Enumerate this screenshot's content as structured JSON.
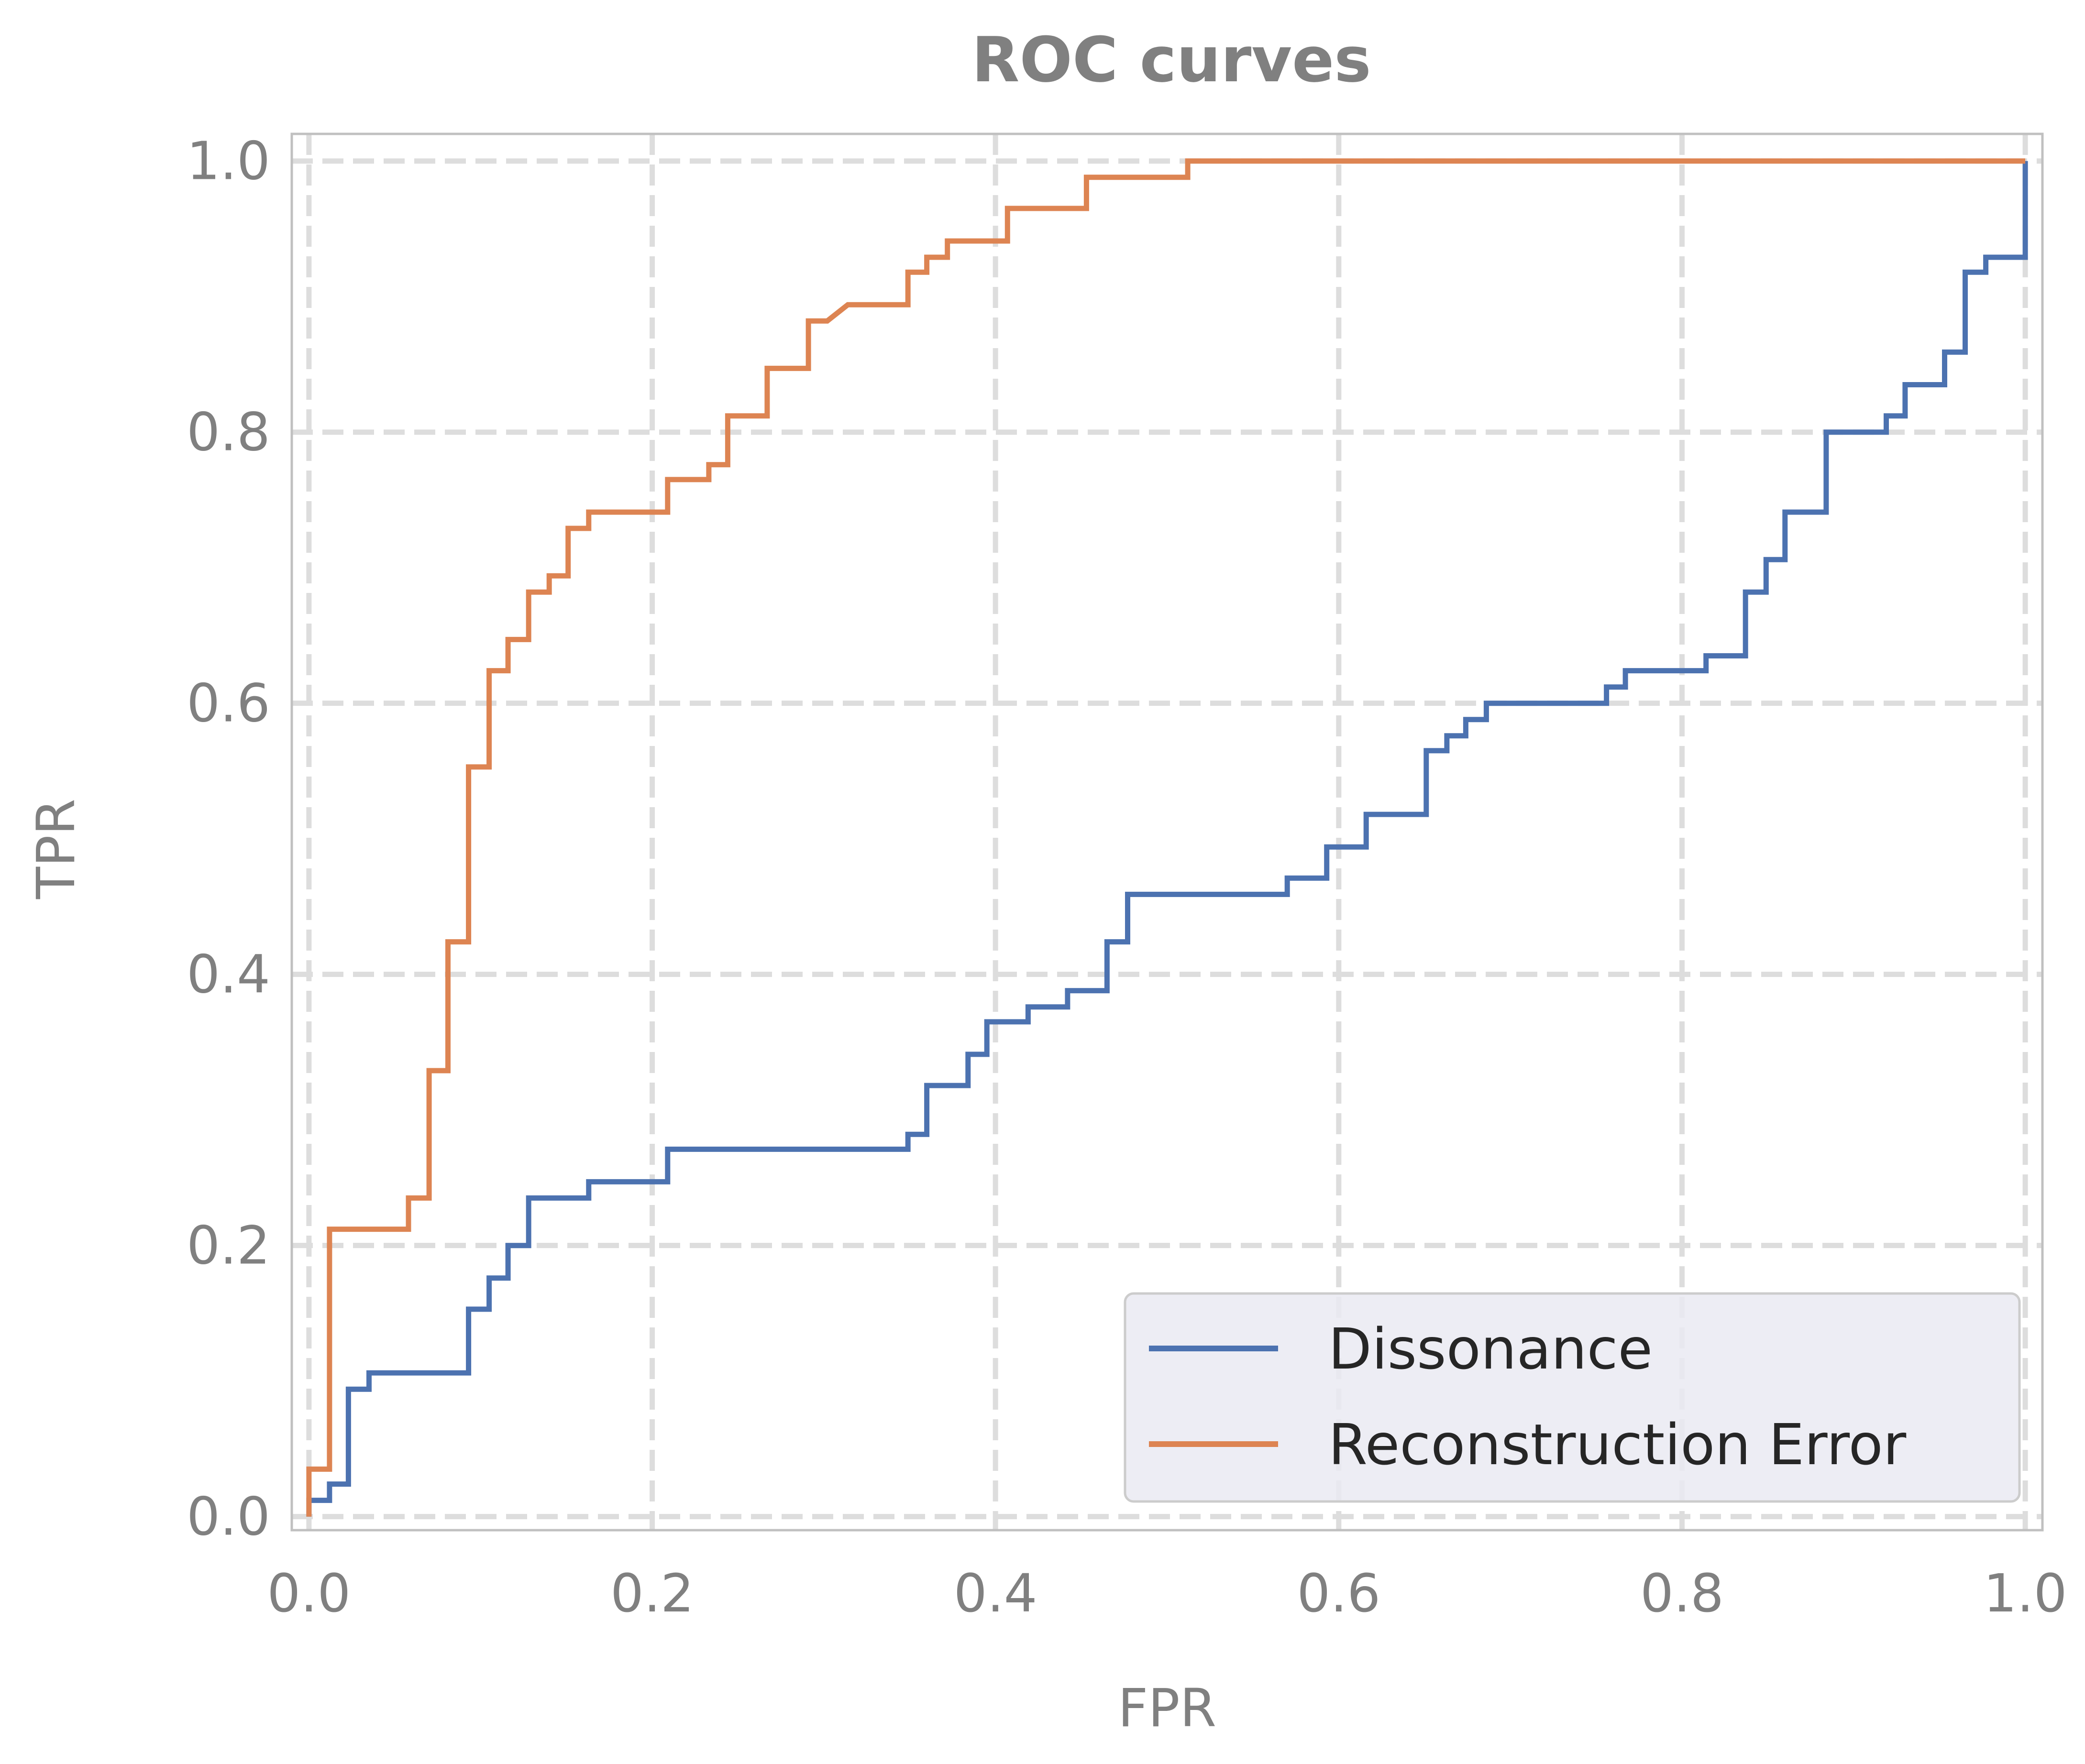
{
  "chart_data": {
    "type": "line",
    "title": "ROC curves",
    "xlabel": "FPR",
    "ylabel": "TPR",
    "xlim": [
      -0.01,
      1.01
    ],
    "ylim": [
      -0.01,
      1.02
    ],
    "xticks": [
      0.0,
      0.2,
      0.4,
      0.6,
      0.8,
      1.0
    ],
    "yticks": [
      0.0,
      0.2,
      0.4,
      0.6,
      0.8,
      1.0
    ],
    "xtick_labels": [
      "0.0",
      "0.2",
      "0.4",
      "0.6",
      "0.8",
      "1.0"
    ],
    "ytick_labels": [
      "0.0",
      "0.2",
      "0.4",
      "0.6",
      "0.8",
      "1.0"
    ],
    "grid": true,
    "grid_style": "dashed",
    "legend_position": "bottom-right",
    "series": [
      {
        "name": "Dissonance",
        "color": "#4c72b0",
        "step": true,
        "points": [
          [
            0.0,
            0.0
          ],
          [
            0.0,
            0.012
          ],
          [
            0.012,
            0.012
          ],
          [
            0.012,
            0.024
          ],
          [
            0.023,
            0.024
          ],
          [
            0.023,
            0.094
          ],
          [
            0.035,
            0.094
          ],
          [
            0.035,
            0.106
          ],
          [
            0.093,
            0.106
          ],
          [
            0.093,
            0.153
          ],
          [
            0.105,
            0.153
          ],
          [
            0.105,
            0.176
          ],
          [
            0.116,
            0.176
          ],
          [
            0.116,
            0.2
          ],
          [
            0.128,
            0.2
          ],
          [
            0.128,
            0.235
          ],
          [
            0.163,
            0.235
          ],
          [
            0.163,
            0.247
          ],
          [
            0.209,
            0.247
          ],
          [
            0.209,
            0.271
          ],
          [
            0.349,
            0.271
          ],
          [
            0.349,
            0.282
          ],
          [
            0.36,
            0.282
          ],
          [
            0.36,
            0.318
          ],
          [
            0.384,
            0.318
          ],
          [
            0.384,
            0.341
          ],
          [
            0.395,
            0.341
          ],
          [
            0.395,
            0.365
          ],
          [
            0.419,
            0.365
          ],
          [
            0.419,
            0.376
          ],
          [
            0.442,
            0.376
          ],
          [
            0.442,
            0.388
          ],
          [
            0.465,
            0.388
          ],
          [
            0.465,
            0.424
          ],
          [
            0.477,
            0.424
          ],
          [
            0.477,
            0.459
          ],
          [
            0.57,
            0.459
          ],
          [
            0.57,
            0.471
          ],
          [
            0.593,
            0.471
          ],
          [
            0.593,
            0.494
          ],
          [
            0.616,
            0.494
          ],
          [
            0.616,
            0.518
          ],
          [
            0.651,
            0.518
          ],
          [
            0.651,
            0.565
          ],
          [
            0.663,
            0.565
          ],
          [
            0.663,
            0.576
          ],
          [
            0.674,
            0.576
          ],
          [
            0.674,
            0.588
          ],
          [
            0.686,
            0.588
          ],
          [
            0.686,
            0.6
          ],
          [
            0.756,
            0.6
          ],
          [
            0.756,
            0.612
          ],
          [
            0.767,
            0.612
          ],
          [
            0.767,
            0.624
          ],
          [
            0.814,
            0.624
          ],
          [
            0.814,
            0.635
          ],
          [
            0.837,
            0.635
          ],
          [
            0.837,
            0.682
          ],
          [
            0.849,
            0.682
          ],
          [
            0.849,
            0.706
          ],
          [
            0.86,
            0.706
          ],
          [
            0.86,
            0.741
          ],
          [
            0.884,
            0.741
          ],
          [
            0.884,
            0.8
          ],
          [
            0.919,
            0.8
          ],
          [
            0.919,
            0.812
          ],
          [
            0.93,
            0.812
          ],
          [
            0.93,
            0.835
          ],
          [
            0.953,
            0.835
          ],
          [
            0.953,
            0.859
          ],
          [
            0.965,
            0.859
          ],
          [
            0.965,
            0.918
          ],
          [
            0.977,
            0.918
          ],
          [
            0.977,
            0.929
          ],
          [
            1.0,
            0.929
          ],
          [
            1.0,
            1.0
          ]
        ]
      },
      {
        "name": "Reconstruction Error",
        "color": "#dd8452",
        "step": true,
        "points": [
          [
            0.0,
            0.0
          ],
          [
            0.0,
            0.035
          ],
          [
            0.012,
            0.035
          ],
          [
            0.012,
            0.212
          ],
          [
            0.058,
            0.212
          ],
          [
            0.058,
            0.235
          ],
          [
            0.07,
            0.235
          ],
          [
            0.07,
            0.329
          ],
          [
            0.081,
            0.329
          ],
          [
            0.081,
            0.424
          ],
          [
            0.093,
            0.424
          ],
          [
            0.093,
            0.553
          ],
          [
            0.105,
            0.553
          ],
          [
            0.105,
            0.624
          ],
          [
            0.116,
            0.624
          ],
          [
            0.116,
            0.647
          ],
          [
            0.128,
            0.647
          ],
          [
            0.128,
            0.682
          ],
          [
            0.14,
            0.682
          ],
          [
            0.14,
            0.694
          ],
          [
            0.151,
            0.694
          ],
          [
            0.151,
            0.729
          ],
          [
            0.163,
            0.729
          ],
          [
            0.163,
            0.741
          ],
          [
            0.209,
            0.741
          ],
          [
            0.209,
            0.765
          ],
          [
            0.233,
            0.765
          ],
          [
            0.233,
            0.776
          ],
          [
            0.244,
            0.776
          ],
          [
            0.244,
            0.812
          ],
          [
            0.267,
            0.812
          ],
          [
            0.267,
            0.847
          ],
          [
            0.291,
            0.847
          ],
          [
            0.291,
            0.882
          ],
          [
            0.302,
            0.882
          ],
          [
            0.314,
            0.894
          ],
          [
            0.349,
            0.894
          ],
          [
            0.349,
            0.918
          ],
          [
            0.36,
            0.918
          ],
          [
            0.36,
            0.929
          ],
          [
            0.372,
            0.929
          ],
          [
            0.372,
            0.941
          ],
          [
            0.407,
            0.941
          ],
          [
            0.407,
            0.965
          ],
          [
            0.453,
            0.965
          ],
          [
            0.453,
            0.988
          ],
          [
            0.512,
            0.988
          ],
          [
            0.512,
            1.0
          ],
          [
            1.0,
            1.0
          ]
        ]
      }
    ]
  }
}
